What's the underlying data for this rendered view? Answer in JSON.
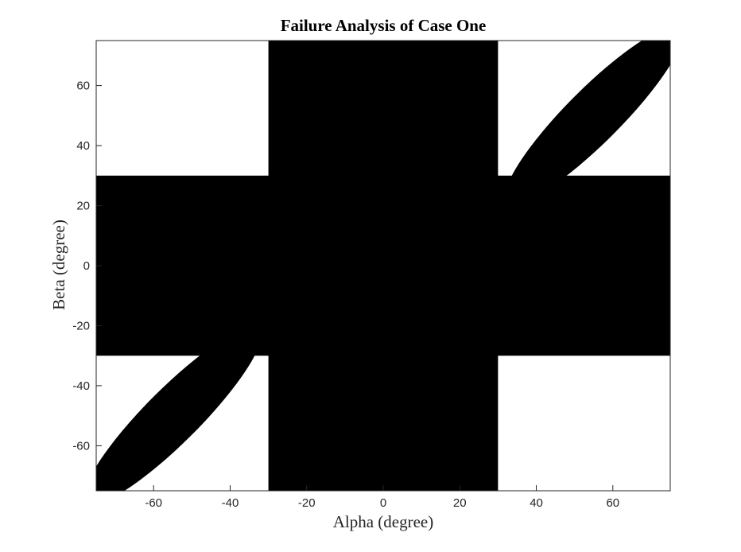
{
  "chart_data": {
    "type": "scatter",
    "title": "Failure Analysis of Case One",
    "xlabel": "Alpha (degree)",
    "ylabel": "Beta (degree)",
    "xlim": [
      -75,
      75
    ],
    "ylim": [
      -75,
      75
    ],
    "xticks": [
      -60,
      -40,
      -20,
      0,
      20,
      40,
      60
    ],
    "yticks": [
      -60,
      -40,
      -20,
      0,
      20,
      40,
      60
    ],
    "grid": false,
    "box": true,
    "fill_color": "#000000",
    "failure_regions": [
      {
        "shape": "band",
        "x": [
          -30,
          30
        ],
        "y": [
          -75,
          75
        ]
      },
      {
        "shape": "band",
        "x": [
          -75,
          75
        ],
        "y": [
          -30,
          30
        ]
      },
      {
        "shape": "ellipse",
        "center": [
          55,
          50
        ],
        "radius": [
          32,
          9
        ],
        "angle_deg": 45
      },
      {
        "shape": "ellipse",
        "center": [
          -55,
          -50
        ],
        "radius": [
          32,
          9
        ],
        "angle_deg": 45
      }
    ]
  }
}
